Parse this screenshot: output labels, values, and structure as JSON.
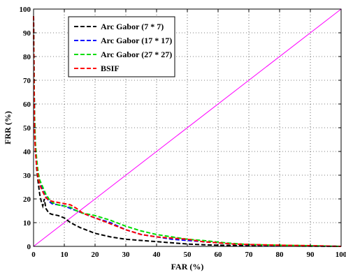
{
  "chart_data": {
    "type": "line",
    "title": "",
    "xlabel": "FAR (%)",
    "ylabel": "FRR (%)",
    "xlim": [
      0,
      100
    ],
    "ylim": [
      0,
      100
    ],
    "xticks": [
      0,
      10,
      20,
      30,
      40,
      50,
      60,
      70,
      80,
      90,
      100
    ],
    "yticks": [
      0,
      10,
      20,
      30,
      40,
      50,
      60,
      70,
      80,
      90,
      100
    ],
    "grid": true,
    "legend_position": "top-left",
    "series": [
      {
        "name": "Arc Gabor (7 * 7)",
        "color": "#000000",
        "dash": "dashed",
        "x": [
          0,
          0.3,
          0.6,
          1,
          1.5,
          2,
          2.5,
          3,
          3.5,
          4,
          5,
          6,
          8,
          10,
          12,
          15,
          18,
          20,
          25,
          30,
          35,
          40,
          45,
          50,
          55,
          60,
          65,
          70,
          80,
          90,
          100
        ],
        "y": [
          97,
          55,
          42,
          33,
          27,
          22,
          19,
          17,
          20,
          16,
          14,
          13.5,
          13,
          12,
          10,
          8,
          6.5,
          5.5,
          4,
          3,
          2.5,
          2,
          1.5,
          1,
          0.7,
          0.5,
          0.4,
          0.3,
          0.2,
          0.1,
          0
        ]
      },
      {
        "name": "Arc Gabor (17 * 17)",
        "color": "#0000ff",
        "dash": "dashed",
        "x": [
          0,
          0.3,
          0.6,
          1,
          1.5,
          2,
          3,
          4,
          5,
          6,
          8,
          10,
          12,
          14,
          16,
          18,
          20,
          25,
          30,
          35,
          40,
          45,
          50,
          55,
          60,
          65,
          70,
          80,
          90,
          100
        ],
        "y": [
          97,
          55,
          42,
          36,
          30,
          27,
          24,
          21,
          19,
          18,
          17.5,
          17,
          16,
          15,
          14,
          13,
          12,
          10,
          7,
          5,
          4,
          3,
          2.5,
          2,
          1.5,
          1,
          0.7,
          0.4,
          0.2,
          0
        ]
      },
      {
        "name": "Arc Gabor (27 * 27)",
        "color": "#00dd00",
        "dash": "dashed",
        "x": [
          0,
          0.3,
          0.6,
          1,
          1.5,
          2,
          3,
          4,
          5,
          6,
          8,
          10,
          12,
          14,
          16,
          18,
          20,
          25,
          30,
          35,
          40,
          45,
          50,
          55,
          60,
          65,
          70,
          80,
          90,
          100
        ],
        "y": [
          97,
          57,
          44,
          37,
          31,
          28,
          25,
          22,
          20,
          18.5,
          17.5,
          17,
          16.5,
          15,
          14,
          13.5,
          13,
          11,
          8.5,
          6.5,
          5,
          4,
          3,
          2.5,
          1.8,
          1.2,
          0.8,
          0.5,
          0.3,
          0
        ]
      },
      {
        "name": "BSIF",
        "color": "#ff0000",
        "dash": "dashed",
        "x": [
          0,
          0.3,
          0.6,
          1,
          1.5,
          2,
          3,
          4,
          5,
          6,
          8,
          10,
          12,
          14,
          16,
          18,
          20,
          25,
          30,
          35,
          40,
          45,
          50,
          55,
          60,
          65,
          70,
          80,
          90,
          100
        ],
        "y": [
          97,
          50,
          40,
          34,
          29,
          26,
          23,
          20.5,
          19.5,
          19,
          18.5,
          18,
          17.5,
          16,
          14,
          13,
          12,
          9.5,
          7,
          5,
          4,
          3.5,
          3,
          2,
          1.5,
          1,
          0.8,
          0.5,
          0.3,
          0
        ]
      },
      {
        "name": "",
        "color": "#ff00ff",
        "dash": "solid",
        "x": [
          0,
          100
        ],
        "y": [
          0,
          100
        ]
      }
    ]
  }
}
